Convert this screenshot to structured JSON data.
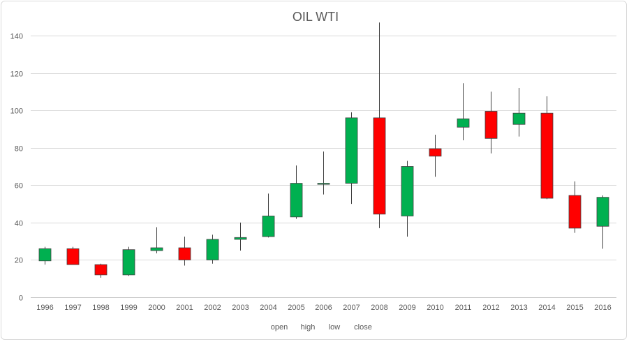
{
  "chart_data": {
    "type": "candlestick",
    "title": "OIL WTI",
    "xlabel": "",
    "ylabel": "",
    "ylim": [
      0,
      140
    ],
    "yticks": [
      0,
      20,
      40,
      60,
      80,
      100,
      120,
      140
    ],
    "grid": true,
    "legend_position": "bottom",
    "legend": [
      "open",
      "high",
      "low",
      "close"
    ],
    "up_color": "#00b050",
    "down_color": "#ff0000",
    "categories": [
      "1996",
      "1997",
      "1998",
      "1999",
      "2000",
      "2001",
      "2002",
      "2003",
      "2004",
      "2005",
      "2006",
      "2007",
      "2008",
      "2009",
      "2010",
      "2011",
      "2012",
      "2013",
      "2014",
      "2015",
      "2016"
    ],
    "open": [
      19.5,
      26.0,
      17.5,
      12.0,
      25.0,
      26.5,
      20.0,
      31.0,
      32.5,
      43.0,
      61.0,
      61.0,
      96.0,
      43.5,
      79.5,
      91.0,
      99.5,
      92.5,
      98.5,
      54.5,
      38.0
    ],
    "high": [
      27.0,
      27.0,
      18.0,
      27.0,
      37.5,
      32.5,
      33.5,
      40.0,
      55.5,
      70.5,
      78.0,
      99.0,
      147.0,
      73.0,
      87.0,
      114.5,
      110.0,
      112.0,
      107.5,
      62.0,
      54.5
    ],
    "low": [
      17.5,
      17.5,
      10.5,
      11.5,
      23.5,
      17.0,
      18.0,
      25.0,
      32.0,
      42.0,
      55.0,
      50.0,
      37.0,
      32.5,
      64.5,
      84.0,
      77.0,
      86.0,
      52.5,
      34.5,
      26.0
    ],
    "close": [
      26.0,
      17.5,
      12.0,
      25.5,
      26.5,
      20.0,
      31.0,
      32.0,
      43.5,
      61.0,
      61.0,
      96.0,
      44.5,
      70.0,
      75.5,
      95.5,
      85.0,
      98.5,
      53.0,
      37.0,
      53.5
    ]
  }
}
